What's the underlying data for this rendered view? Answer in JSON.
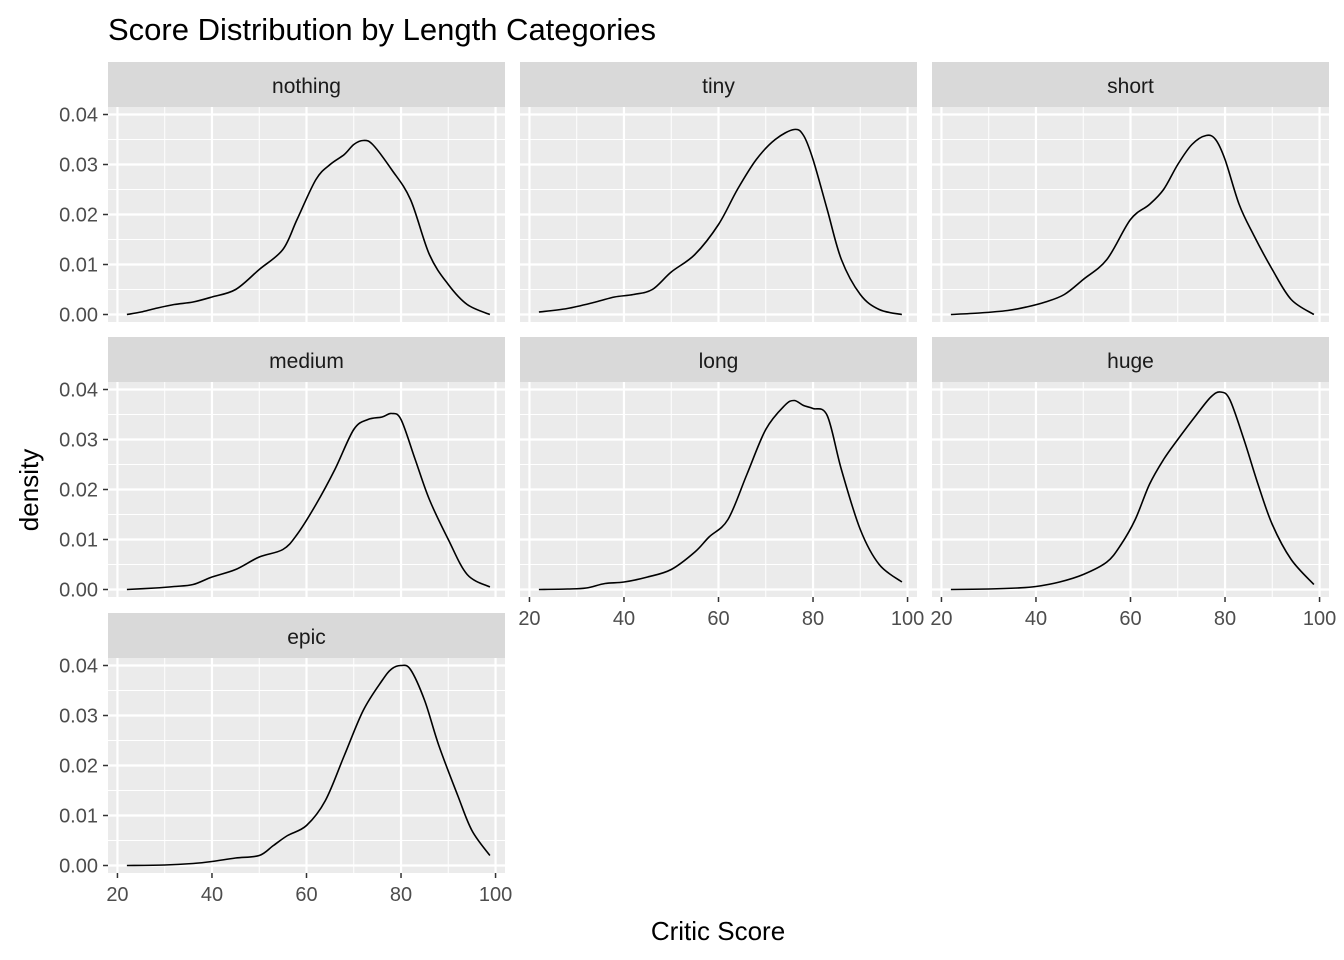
{
  "chart_data": {
    "type": "line",
    "title": "Score Distribution by Length Categories",
    "xlabel": "Critic Score",
    "ylabel": "density",
    "xlim": [
      18,
      102
    ],
    "ylim": [
      -0.0015,
      0.0415
    ],
    "x_ticks": [
      20,
      40,
      60,
      80,
      100
    ],
    "y_ticks": [
      0.0,
      0.01,
      0.02,
      0.03,
      0.04
    ],
    "y_tick_labels": [
      "0.00",
      "0.01",
      "0.02",
      "0.03",
      "0.04"
    ],
    "grid": true,
    "series": [
      {
        "name": "nothing",
        "x": [
          22,
          25,
          28,
          32,
          36,
          40,
          45,
          50,
          55,
          58,
          62,
          65,
          68,
          70,
          72,
          74,
          78,
          82,
          86,
          90,
          94,
          98.8
        ],
        "y": [
          0.0,
          0.0005,
          0.0012,
          0.002,
          0.0025,
          0.0035,
          0.005,
          0.009,
          0.013,
          0.019,
          0.027,
          0.03,
          0.032,
          0.034,
          0.0348,
          0.034,
          0.029,
          0.023,
          0.012,
          0.006,
          0.002,
          0.0
        ]
      },
      {
        "name": "tiny",
        "x": [
          22,
          28,
          34,
          38,
          42,
          46,
          50,
          55,
          60,
          64,
          68,
          72,
          76,
          78,
          80,
          83,
          86,
          90,
          94,
          98.8
        ],
        "y": [
          0.0005,
          0.0012,
          0.0025,
          0.0035,
          0.004,
          0.005,
          0.0085,
          0.012,
          0.018,
          0.025,
          0.031,
          0.035,
          0.037,
          0.0358,
          0.031,
          0.021,
          0.011,
          0.004,
          0.001,
          0.0
        ]
      },
      {
        "name": "short",
        "x": [
          22,
          28,
          34,
          38,
          42,
          46,
          50,
          55,
          60,
          64,
          67,
          70,
          73,
          76,
          78,
          80,
          83,
          86,
          90,
          94,
          98.8
        ],
        "y": [
          0.0,
          0.0003,
          0.0008,
          0.0015,
          0.0025,
          0.004,
          0.007,
          0.011,
          0.019,
          0.022,
          0.025,
          0.03,
          0.034,
          0.0358,
          0.035,
          0.031,
          0.022,
          0.016,
          0.009,
          0.003,
          0.0
        ]
      },
      {
        "name": "medium",
        "x": [
          22,
          28,
          32,
          36,
          40,
          45,
          50,
          55,
          58,
          62,
          66,
          70,
          73,
          76,
          78,
          80,
          83,
          86,
          90,
          94,
          98.8
        ],
        "y": [
          0.0,
          0.0003,
          0.0006,
          0.001,
          0.0025,
          0.004,
          0.0065,
          0.008,
          0.011,
          0.017,
          0.024,
          0.032,
          0.034,
          0.0345,
          0.0352,
          0.034,
          0.026,
          0.018,
          0.01,
          0.003,
          0.0005
        ]
      },
      {
        "name": "long",
        "x": [
          22,
          28,
          32,
          36,
          40,
          45,
          50,
          55,
          58,
          62,
          66,
          70,
          74,
          76,
          78,
          80,
          83,
          86,
          90,
          94,
          98.8
        ],
        "y": [
          0.0,
          0.0001,
          0.0003,
          0.0012,
          0.0015,
          0.0025,
          0.004,
          0.0075,
          0.0105,
          0.014,
          0.023,
          0.032,
          0.0368,
          0.0378,
          0.0368,
          0.0362,
          0.0348,
          0.024,
          0.012,
          0.005,
          0.0015
        ]
      },
      {
        "name": "huge",
        "x": [
          22,
          30,
          36,
          40,
          45,
          50,
          55,
          58,
          61,
          64,
          67,
          70,
          74,
          77,
          79,
          81,
          84,
          87,
          90,
          94,
          98.8
        ],
        "y": [
          0.0,
          0.0001,
          0.0003,
          0.0006,
          0.0015,
          0.003,
          0.0055,
          0.009,
          0.014,
          0.021,
          0.026,
          0.03,
          0.035,
          0.0385,
          0.0395,
          0.038,
          0.03,
          0.021,
          0.013,
          0.006,
          0.001
        ]
      },
      {
        "name": "epic",
        "x": [
          22,
          30,
          36,
          40,
          45,
          50,
          53,
          56,
          60,
          64,
          68,
          72,
          76,
          78,
          80,
          82,
          85,
          88,
          92,
          95,
          98.8
        ],
        "y": [
          0.0,
          0.0001,
          0.0004,
          0.0008,
          0.0015,
          0.002,
          0.004,
          0.006,
          0.008,
          0.013,
          0.022,
          0.031,
          0.037,
          0.0393,
          0.04,
          0.0392,
          0.033,
          0.024,
          0.014,
          0.007,
          0.002
        ]
      }
    ]
  }
}
